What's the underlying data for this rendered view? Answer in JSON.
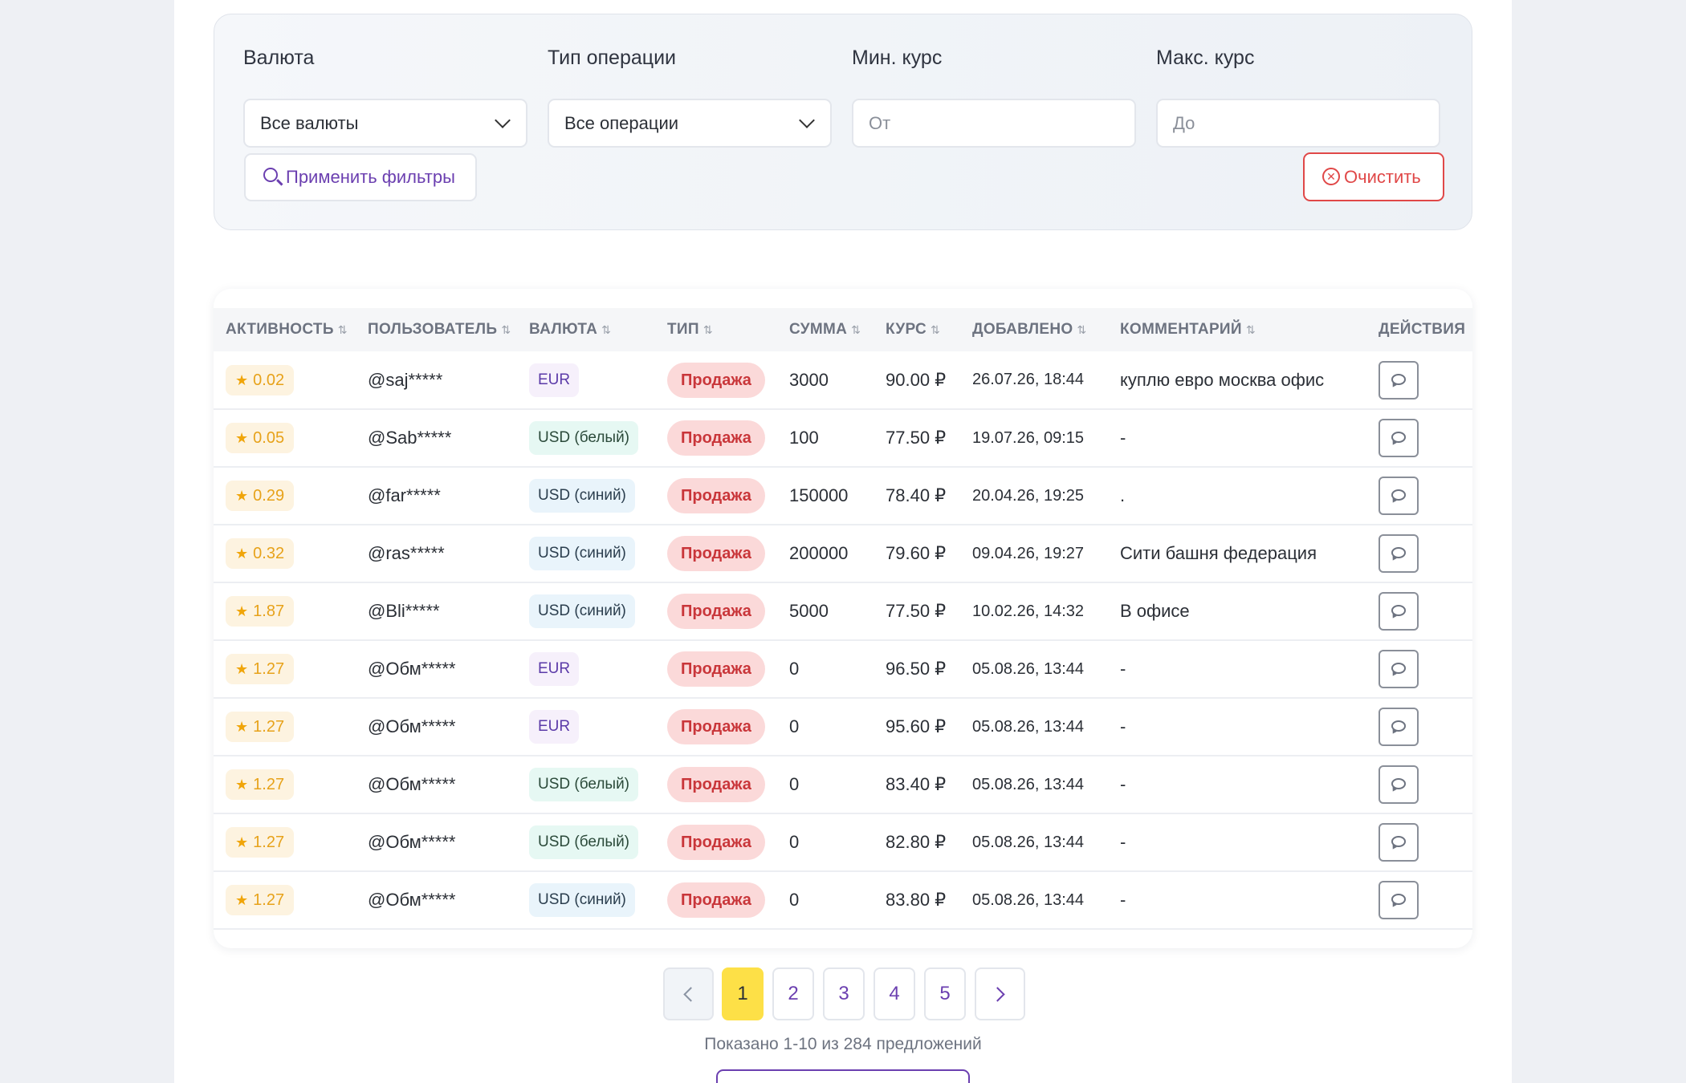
{
  "filters": {
    "currency_label": "Валюта",
    "currency_value": "Все валюты",
    "optype_label": "Тип операции",
    "optype_value": "Все операции",
    "minrate_label": "Мин. курс",
    "minrate_placeholder": "От",
    "maxrate_label": "Макс. курс",
    "maxrate_placeholder": "До",
    "apply_label": "Применить фильтры",
    "clear_label": "Очистить"
  },
  "table": {
    "headers": {
      "activity": "АКТИВНОСТЬ",
      "user": "ПОЛЬЗОВАТЕЛЬ",
      "currency": "ВАЛЮТА",
      "type": "ТИП",
      "amount": "СУММА",
      "rate": "КУРС",
      "added": "ДОБАВЛЕНО",
      "comment": "КОММЕНТАРИЙ",
      "actions": "ДЕЙСТВИЯ"
    },
    "rows": [
      {
        "activity": "0.02",
        "user": "@saj*****",
        "currency": "EUR",
        "type": "Продажа",
        "amount": "3000",
        "rate": "90.00 ₽",
        "added": "26.07.26, 18:44",
        "comment": "куплю евро москва офис"
      },
      {
        "activity": "0.05",
        "user": "@Sab*****",
        "currency": "USD (белый)",
        "type": "Продажа",
        "amount": "100",
        "rate": "77.50 ₽",
        "added": "19.07.26, 09:15",
        "comment": "-"
      },
      {
        "activity": "0.29",
        "user": "@far*****",
        "currency": "USD (синий)",
        "type": "Продажа",
        "amount": "150000",
        "rate": "78.40 ₽",
        "added": "20.04.26, 19:25",
        "comment": "."
      },
      {
        "activity": "0.32",
        "user": "@ras*****",
        "currency": "USD (синий)",
        "type": "Продажа",
        "amount": "200000",
        "rate": "79.60 ₽",
        "added": "09.04.26, 19:27",
        "comment": "Сити башня федерация"
      },
      {
        "activity": "1.87",
        "user": "@Bli*****",
        "currency": "USD (синий)",
        "type": "Продажа",
        "amount": "5000",
        "rate": "77.50 ₽",
        "added": "10.02.26, 14:32",
        "comment": "В офисе"
      },
      {
        "activity": "1.27",
        "user": "@Обм*****",
        "currency": "EUR",
        "type": "Продажа",
        "amount": "0",
        "rate": "96.50 ₽",
        "added": "05.08.26, 13:44",
        "comment": "-"
      },
      {
        "activity": "1.27",
        "user": "@Обм*****",
        "currency": "EUR",
        "type": "Продажа",
        "amount": "0",
        "rate": "95.60 ₽",
        "added": "05.08.26, 13:44",
        "comment": "-"
      },
      {
        "activity": "1.27",
        "user": "@Обм*****",
        "currency": "USD (белый)",
        "type": "Продажа",
        "amount": "0",
        "rate": "83.40 ₽",
        "added": "05.08.26, 13:44",
        "comment": "-"
      },
      {
        "activity": "1.27",
        "user": "@Обм*****",
        "currency": "USD (белый)",
        "type": "Продажа",
        "amount": "0",
        "rate": "82.80 ₽",
        "added": "05.08.26, 13:44",
        "comment": "-"
      },
      {
        "activity": "1.27",
        "user": "@Обм*****",
        "currency": "USD (синий)",
        "type": "Продажа",
        "amount": "0",
        "rate": "83.80 ₽",
        "added": "05.08.26, 13:44",
        "comment": "-"
      }
    ]
  },
  "pagination": {
    "pages": [
      "1",
      "2",
      "3",
      "4",
      "5"
    ],
    "current": "1",
    "summary": "Показано 1-10 из 284 предложений"
  },
  "colors": {
    "accent": "#6b3fb0",
    "danger": "#e04848",
    "active_page": "#fde047",
    "sale_badge_bg": "#fbd9d9",
    "activity_star": "#f0a50a"
  },
  "icons": {
    "select_chevron": "chevron-down-icon",
    "apply": "search-icon",
    "clear": "close-circle-icon",
    "sort": "sort-icon",
    "activity": "star-icon",
    "action": "message-icon",
    "prev": "chevron-left-icon",
    "next": "chevron-right-icon"
  }
}
